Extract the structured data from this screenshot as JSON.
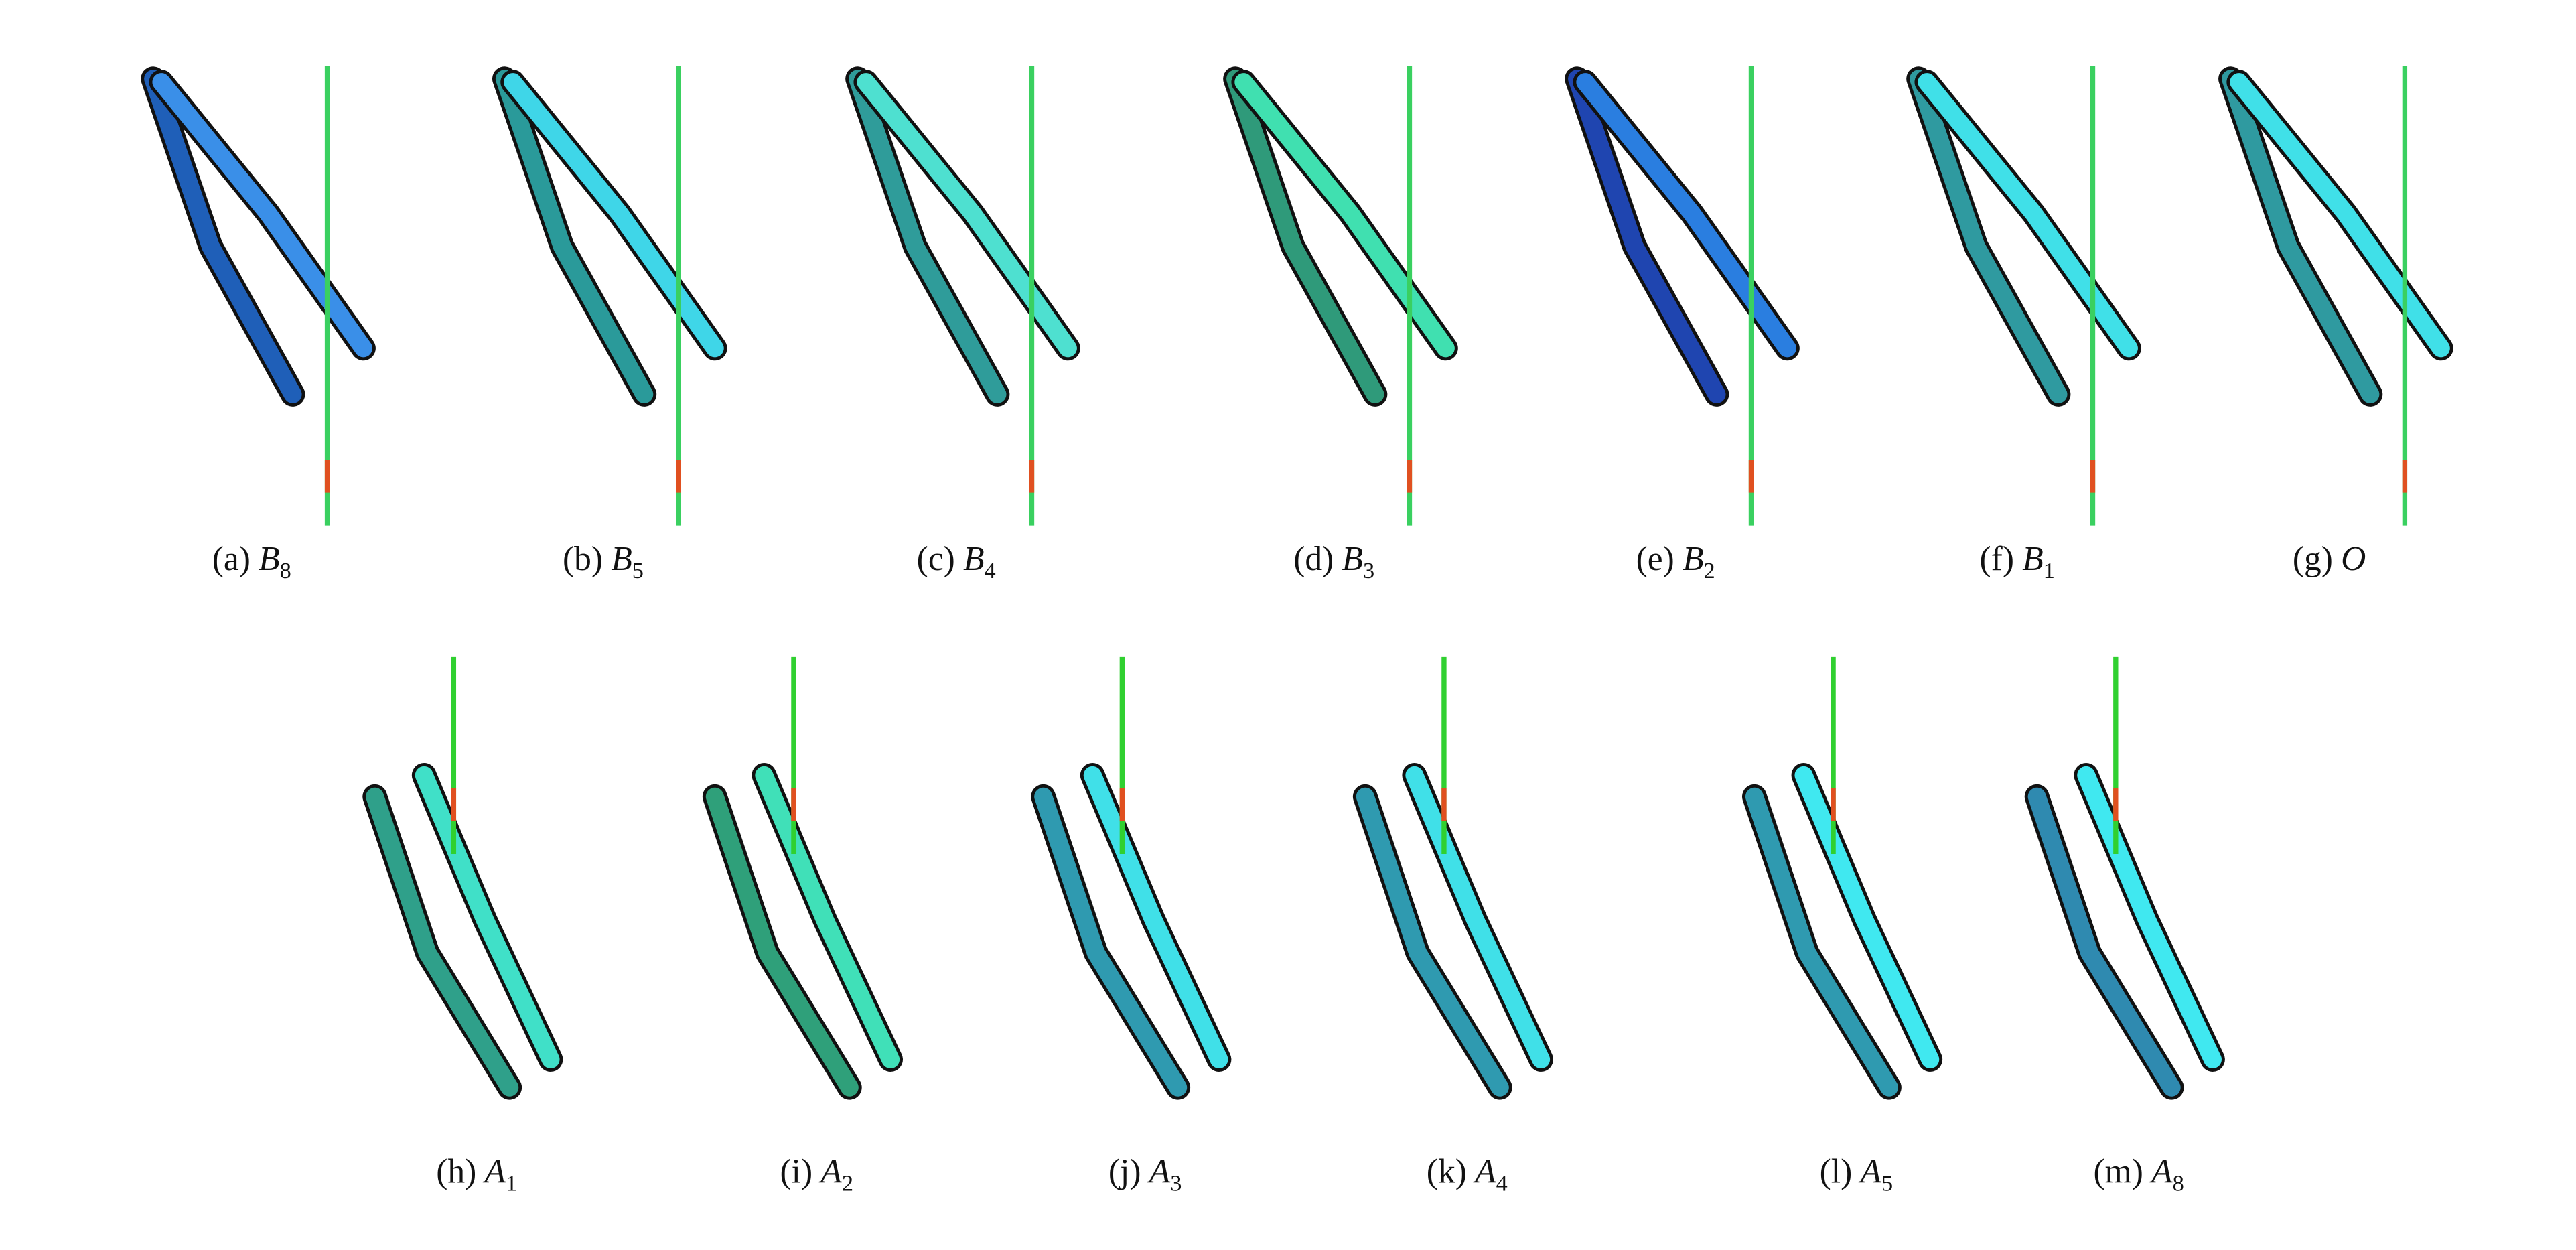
{
  "figure": {
    "panels": [
      {
        "tag": "(a)",
        "symbol": "B",
        "subscript": "8"
      },
      {
        "tag": "(b)",
        "symbol": "B",
        "subscript": "5"
      },
      {
        "tag": "(c)",
        "symbol": "B",
        "subscript": "4"
      },
      {
        "tag": "(d)",
        "symbol": "B",
        "subscript": "3"
      },
      {
        "tag": "(e)",
        "symbol": "B",
        "subscript": "2"
      },
      {
        "tag": "(f)",
        "symbol": "B",
        "subscript": "1"
      },
      {
        "tag": "(g)",
        "symbol": "O"
      },
      {
        "tag": "(h)",
        "symbol": "A",
        "subscript": "1"
      },
      {
        "tag": "(i)",
        "symbol": "A",
        "subscript": "2"
      },
      {
        "tag": "(j)",
        "symbol": "A",
        "subscript": "3"
      },
      {
        "tag": "(k)",
        "symbol": "A",
        "subscript": "4"
      },
      {
        "tag": "(l)",
        "symbol": "A",
        "subscript": "5"
      },
      {
        "tag": "(m)",
        "symbol": "A",
        "subscript": "8"
      }
    ]
  }
}
